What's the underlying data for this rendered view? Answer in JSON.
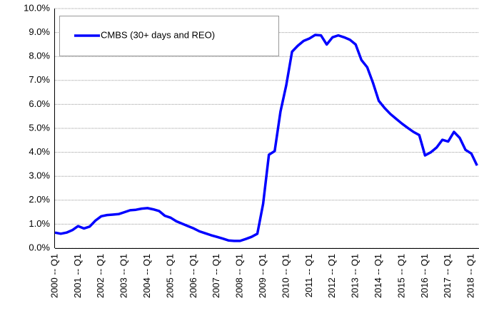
{
  "chart_data": {
    "type": "line",
    "categories": [
      "2000 -- Q1",
      null,
      null,
      null,
      "2001 -- Q1",
      null,
      null,
      null,
      "2002 -- Q1",
      null,
      null,
      null,
      "2003 -- Q1",
      null,
      null,
      null,
      "2004 -- Q1",
      null,
      null,
      null,
      "2005 -- Q1",
      null,
      null,
      null,
      "2006 -- Q1",
      null,
      null,
      null,
      "2007 -- Q1",
      null,
      null,
      null,
      "2008 -- Q1",
      null,
      null,
      null,
      "2009 -- Q1",
      null,
      null,
      null,
      "2010 -- Q1",
      null,
      null,
      null,
      "2011 -- Q1",
      null,
      null,
      null,
      "2012 -- Q1",
      null,
      null,
      null,
      "2013 -- Q1",
      null,
      null,
      null,
      "2014 -- Q1",
      null,
      null,
      null,
      "2015 -- Q1",
      null,
      null,
      null,
      "2016 -- Q1",
      null,
      null,
      null,
      "2017 -- Q1",
      null,
      null,
      null,
      "2018 -- Q1",
      null
    ],
    "series": [
      {
        "name": "CMBS (30+ days and REO)",
        "color": "#0000ff",
        "values": [
          0.65,
          0.6,
          0.65,
          0.75,
          0.92,
          0.82,
          0.9,
          1.15,
          1.33,
          1.38,
          1.4,
          1.42,
          1.5,
          1.58,
          1.6,
          1.65,
          1.67,
          1.62,
          1.55,
          1.35,
          1.27,
          1.12,
          1.02,
          0.92,
          0.82,
          0.7,
          0.62,
          0.54,
          0.47,
          0.4,
          0.32,
          0.3,
          0.3,
          0.38,
          0.47,
          0.6,
          1.85,
          3.9,
          4.05,
          5.7,
          6.8,
          8.2,
          8.45,
          8.65,
          8.75,
          8.9,
          8.88,
          8.5,
          8.8,
          8.88,
          8.8,
          8.7,
          8.5,
          7.85,
          7.55,
          6.9,
          6.15,
          5.85,
          5.6,
          5.4,
          5.2,
          5.02,
          4.85,
          4.72,
          3.87,
          4.0,
          4.2,
          4.52,
          4.45,
          4.85,
          4.6,
          4.1,
          3.95,
          3.45
        ]
      }
    ],
    "ylim": [
      0,
      10
    ],
    "yticks": [
      {
        "value": 0,
        "label": "0.0%"
      },
      {
        "value": 1,
        "label": "1.0%"
      },
      {
        "value": 2,
        "label": "2.0%"
      },
      {
        "value": 3,
        "label": "3.0%"
      },
      {
        "value": 4,
        "label": "4.0%"
      },
      {
        "value": 5,
        "label": "5.0%"
      },
      {
        "value": 6,
        "label": "6.0%"
      },
      {
        "value": 7,
        "label": "7.0%"
      },
      {
        "value": 8,
        "label": "8.0%"
      },
      {
        "value": 9,
        "label": "9.0%"
      },
      {
        "value": 10,
        "label": "10.0%"
      }
    ],
    "grid": true,
    "legend": "top-left"
  }
}
